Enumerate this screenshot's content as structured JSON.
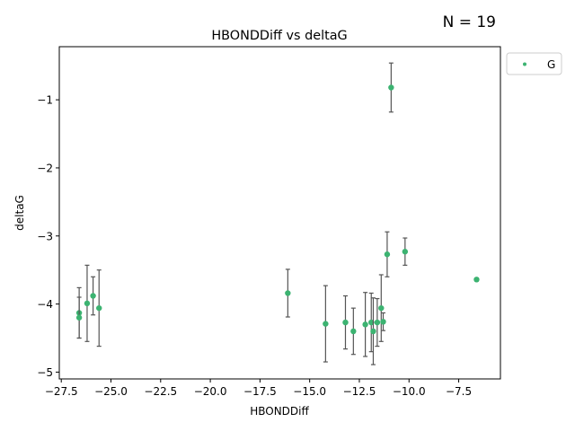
{
  "chart_data": {
    "type": "scatter",
    "title": "HBONDDiff vs deltaG",
    "annotation": "N = 19",
    "xlabel": "HBONDDiff",
    "ylabel": "deltaG",
    "xlim": [
      -27.6,
      -5.4
    ],
    "ylim": [
      -5.1,
      -0.22
    ],
    "xticks": [
      -27.5,
      -25.0,
      -22.5,
      -20.0,
      -17.5,
      -15.0,
      -12.5,
      -10.0,
      -7.5
    ],
    "xtick_labels": [
      "−27.5",
      "−25.0",
      "−22.5",
      "−20.0",
      "−17.5",
      "−15.0",
      "−12.5",
      "−10.0",
      "−7.5"
    ],
    "yticks": [
      -5,
      -4,
      -3,
      -2,
      -1
    ],
    "ytick_labels": [
      "−5",
      "−4",
      "−3",
      "−2",
      "−1"
    ],
    "grid": false,
    "legend": {
      "position": "outside-top-right",
      "entries": [
        {
          "label": "G",
          "color": "#3cb371"
        }
      ]
    },
    "series": [
      {
        "name": "G",
        "color": "#3cb371",
        "errorbar_color": "#555555",
        "points": [
          {
            "x": -26.6,
            "y": -4.13,
            "err": 0.37
          },
          {
            "x": -26.6,
            "y": -4.2,
            "err": 0.3
          },
          {
            "x": -26.2,
            "y": -3.99,
            "err": 0.56
          },
          {
            "x": -25.9,
            "y": -3.88,
            "err": 0.28
          },
          {
            "x": -25.6,
            "y": -4.06,
            "err": 0.56
          },
          {
            "x": -16.1,
            "y": -3.84,
            "err": 0.35
          },
          {
            "x": -14.2,
            "y": -4.29,
            "err": 0.56
          },
          {
            "x": -13.2,
            "y": -4.27,
            "err": 0.39
          },
          {
            "x": -12.8,
            "y": -4.4,
            "err": 0.34
          },
          {
            "x": -12.2,
            "y": -4.3,
            "err": 0.47
          },
          {
            "x": -11.9,
            "y": -4.27,
            "err": 0.43
          },
          {
            "x": -11.8,
            "y": -4.4,
            "err": 0.49
          },
          {
            "x": -11.6,
            "y": -4.27,
            "err": 0.35
          },
          {
            "x": -11.4,
            "y": -4.06,
            "err": 0.49
          },
          {
            "x": -11.3,
            "y": -4.26,
            "err": 0.13
          },
          {
            "x": -11.1,
            "y": -3.27,
            "err": 0.33
          },
          {
            "x": -10.9,
            "y": -0.82,
            "err": 0.36
          },
          {
            "x": -10.2,
            "y": -3.23,
            "err": 0.2
          },
          {
            "x": -6.6,
            "y": -3.64,
            "err": 0.02
          }
        ]
      }
    ]
  }
}
